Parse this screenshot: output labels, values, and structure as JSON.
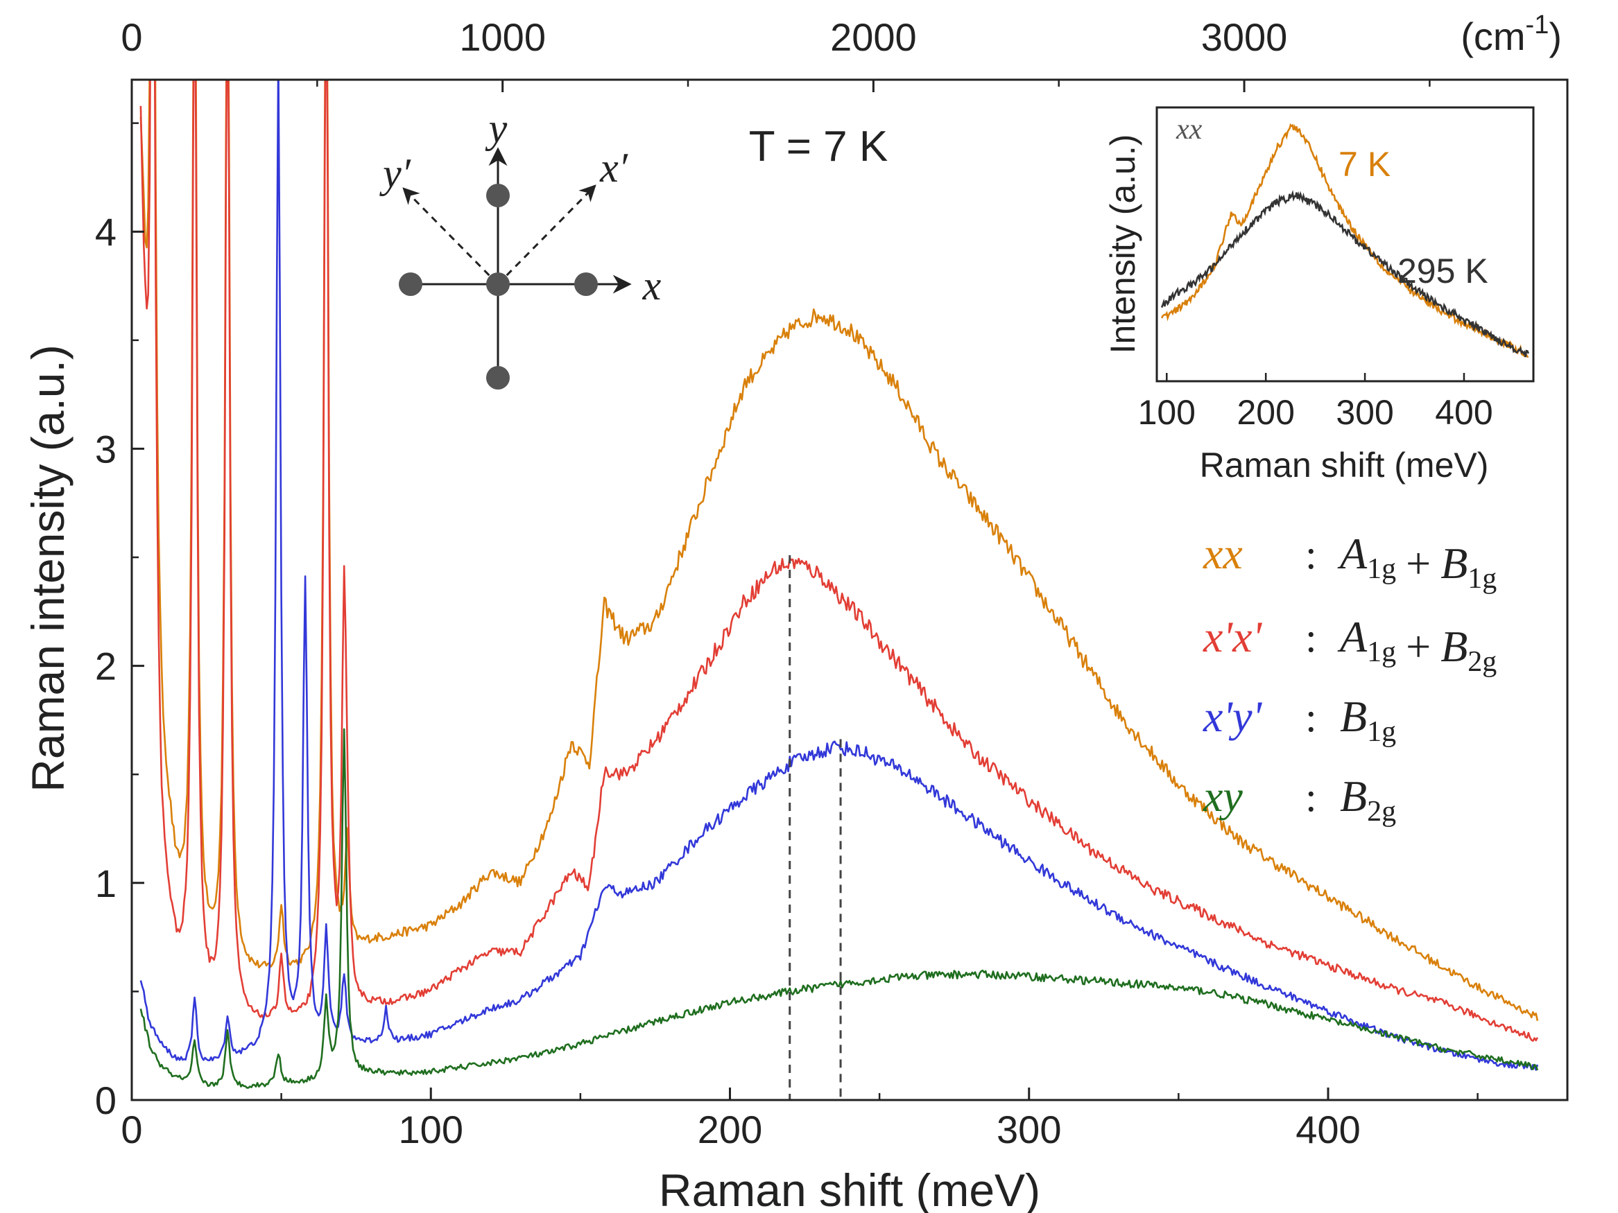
{
  "chart_data": [
    {
      "type": "line",
      "title": "",
      "annotation": "T = 7 K",
      "xlabel": "Raman shift (meV)",
      "ylabel": "Raman intensity (a.u.)",
      "xlim": [
        0,
        480
      ],
      "ylim": [
        0,
        4.7
      ],
      "xticks": [
        "0",
        "100",
        "200",
        "300",
        "400"
      ],
      "yticks": [
        "0",
        "1",
        "2",
        "3",
        "4"
      ],
      "top_axis": {
        "unit_label": "(cm",
        "unit_exp": "-1",
        "unit_close": ")",
        "ticks": [
          "0",
          "1000",
          "2000",
          "3000"
        ],
        "tick_values_cm": [
          0,
          1000,
          2000,
          3000
        ]
      },
      "markers": [
        {
          "series": "x'x'",
          "x": 220
        },
        {
          "series": "x'y'",
          "x": 237
        }
      ],
      "series": [
        {
          "name": "xx",
          "color": "#d9800a",
          "legend": {
            "key": "xx",
            "sep": ":",
            "parts": [
              "A",
              "1g",
              "+",
              "B",
              "1g"
            ]
          },
          "phonons": [
            [
              7,
              5.0
            ],
            [
              21,
              5.0
            ],
            [
              32,
              5.0
            ],
            [
              50,
              0.3
            ],
            [
              65,
              5.0
            ],
            [
              72,
              0.5
            ]
          ],
          "x": [
            3,
            6,
            10,
            15,
            20,
            25,
            30,
            40,
            50,
            60,
            70,
            80,
            90,
            100,
            110,
            120,
            130,
            140,
            147,
            153,
            158,
            165,
            175,
            190,
            205,
            220,
            230,
            240,
            255,
            270,
            290,
            310,
            330,
            350,
            370,
            390,
            410,
            430,
            450,
            470
          ],
          "y": [
            4.3,
            2.5,
            1.5,
            0.95,
            0.72,
            0.62,
            0.56,
            0.56,
            0.57,
            0.58,
            0.63,
            0.72,
            0.76,
            0.8,
            0.9,
            1.05,
            1.0,
            1.3,
            1.65,
            1.55,
            2.28,
            2.12,
            2.2,
            2.75,
            3.3,
            3.55,
            3.62,
            3.55,
            3.3,
            2.95,
            2.6,
            2.2,
            1.78,
            1.45,
            1.2,
            1.02,
            0.85,
            0.68,
            0.52,
            0.38
          ]
        },
        {
          "name": "x'x'",
          "color": "#e23e35",
          "legend": {
            "key": "x'x'",
            "sep": ":",
            "parts": [
              "A",
              "1g",
              "+",
              "B",
              "2g"
            ]
          },
          "phonons": [
            [
              7,
              5.0
            ],
            [
              21,
              5.0
            ],
            [
              32,
              5.0
            ],
            [
              50,
              0.3
            ],
            [
              65,
              5.0
            ],
            [
              71,
              1.75
            ],
            [
              72,
              0.4
            ]
          ],
          "x": [
            3,
            6,
            10,
            15,
            20,
            25,
            30,
            40,
            50,
            60,
            70,
            80,
            90,
            100,
            110,
            120,
            130,
            140,
            147,
            153,
            158,
            165,
            175,
            190,
            205,
            215,
            222,
            230,
            245,
            260,
            280,
            300,
            320,
            340,
            360,
            380,
            400,
            420,
            440,
            460,
            470
          ],
          "y": [
            4.3,
            2.0,
            1.0,
            0.6,
            0.45,
            0.38,
            0.34,
            0.33,
            0.34,
            0.34,
            0.38,
            0.42,
            0.45,
            0.5,
            0.6,
            0.68,
            0.68,
            0.9,
            1.05,
            0.98,
            1.52,
            1.5,
            1.65,
            1.95,
            2.3,
            2.45,
            2.48,
            2.42,
            2.2,
            1.95,
            1.62,
            1.38,
            1.16,
            0.98,
            0.85,
            0.72,
            0.62,
            0.52,
            0.44,
            0.33,
            0.28
          ]
        },
        {
          "name": "x'y'",
          "color": "#3238d8",
          "legend": {
            "key": "x'y'",
            "sep": ":",
            "parts": [
              "B",
              "1g"
            ]
          },
          "phonons": [
            [
              21,
              0.3
            ],
            [
              32,
              0.2
            ],
            [
              49,
              4.6
            ],
            [
              58,
              2.1
            ],
            [
              65,
              0.5
            ],
            [
              71,
              0.3
            ],
            [
              85,
              0.15
            ]
          ],
          "x": [
            3,
            6,
            10,
            15,
            20,
            25,
            30,
            40,
            50,
            60,
            70,
            80,
            90,
            100,
            110,
            120,
            130,
            140,
            150,
            158,
            165,
            175,
            190,
            205,
            220,
            235,
            245,
            260,
            280,
            300,
            320,
            340,
            360,
            380,
            400,
            420,
            440,
            460,
            470
          ],
          "y": [
            0.55,
            0.35,
            0.25,
            0.18,
            0.16,
            0.16,
            0.17,
            0.2,
            0.22,
            0.24,
            0.25,
            0.26,
            0.27,
            0.3,
            0.36,
            0.42,
            0.46,
            0.56,
            0.66,
            0.98,
            0.95,
            1.0,
            1.22,
            1.4,
            1.55,
            1.63,
            1.6,
            1.5,
            1.3,
            1.1,
            0.92,
            0.77,
            0.64,
            0.52,
            0.41,
            0.3,
            0.22,
            0.16,
            0.15
          ]
        },
        {
          "name": "xy",
          "color": "#1f6e1f",
          "legend": {
            "key": "xy",
            "sep": ":",
            "parts": [
              "B",
              "2g"
            ]
          },
          "phonons": [
            [
              21,
              0.2
            ],
            [
              32,
              0.25
            ],
            [
              49,
              0.15
            ],
            [
              65,
              0.35
            ],
            [
              71,
              1.6
            ]
          ],
          "x": [
            3,
            6,
            10,
            15,
            20,
            25,
            30,
            40,
            50,
            60,
            70,
            80,
            90,
            100,
            120,
            140,
            160,
            180,
            200,
            220,
            240,
            260,
            280,
            300,
            320,
            340,
            360,
            380,
            400,
            420,
            440,
            460,
            470
          ],
          "y": [
            0.42,
            0.25,
            0.15,
            0.1,
            0.07,
            0.06,
            0.06,
            0.06,
            0.07,
            0.08,
            0.1,
            0.12,
            0.12,
            0.13,
            0.17,
            0.22,
            0.3,
            0.38,
            0.45,
            0.5,
            0.54,
            0.57,
            0.58,
            0.57,
            0.55,
            0.53,
            0.5,
            0.44,
            0.37,
            0.3,
            0.23,
            0.18,
            0.15
          ]
        }
      ]
    },
    {
      "type": "line",
      "title": "",
      "corner_label": "xx",
      "xlabel": "Raman shift (meV)",
      "ylabel": "Intensity (a.u.)",
      "xlim": [
        90,
        470
      ],
      "ylim": [
        0,
        1
      ],
      "xticks": [
        "100",
        "200",
        "300",
        "400"
      ],
      "series": [
        {
          "name": "7 K",
          "color": "#d9800a",
          "x": [
            95,
            110,
            130,
            150,
            165,
            175,
            190,
            210,
            225,
            235,
            250,
            270,
            290,
            320,
            350,
            380,
            410,
            440,
            465
          ],
          "y": [
            0.2,
            0.23,
            0.3,
            0.43,
            0.63,
            0.58,
            0.7,
            0.88,
            0.98,
            0.96,
            0.85,
            0.68,
            0.55,
            0.4,
            0.3,
            0.22,
            0.16,
            0.1,
            0.05
          ]
        },
        {
          "name": "295 K",
          "color": "#333333",
          "x": [
            95,
            110,
            130,
            150,
            170,
            190,
            210,
            230,
            250,
            270,
            290,
            320,
            350,
            380,
            410,
            440,
            465
          ],
          "y": [
            0.25,
            0.3,
            0.35,
            0.42,
            0.52,
            0.6,
            0.67,
            0.7,
            0.66,
            0.6,
            0.52,
            0.42,
            0.32,
            0.24,
            0.17,
            0.1,
            0.05
          ]
        }
      ]
    }
  ]
}
